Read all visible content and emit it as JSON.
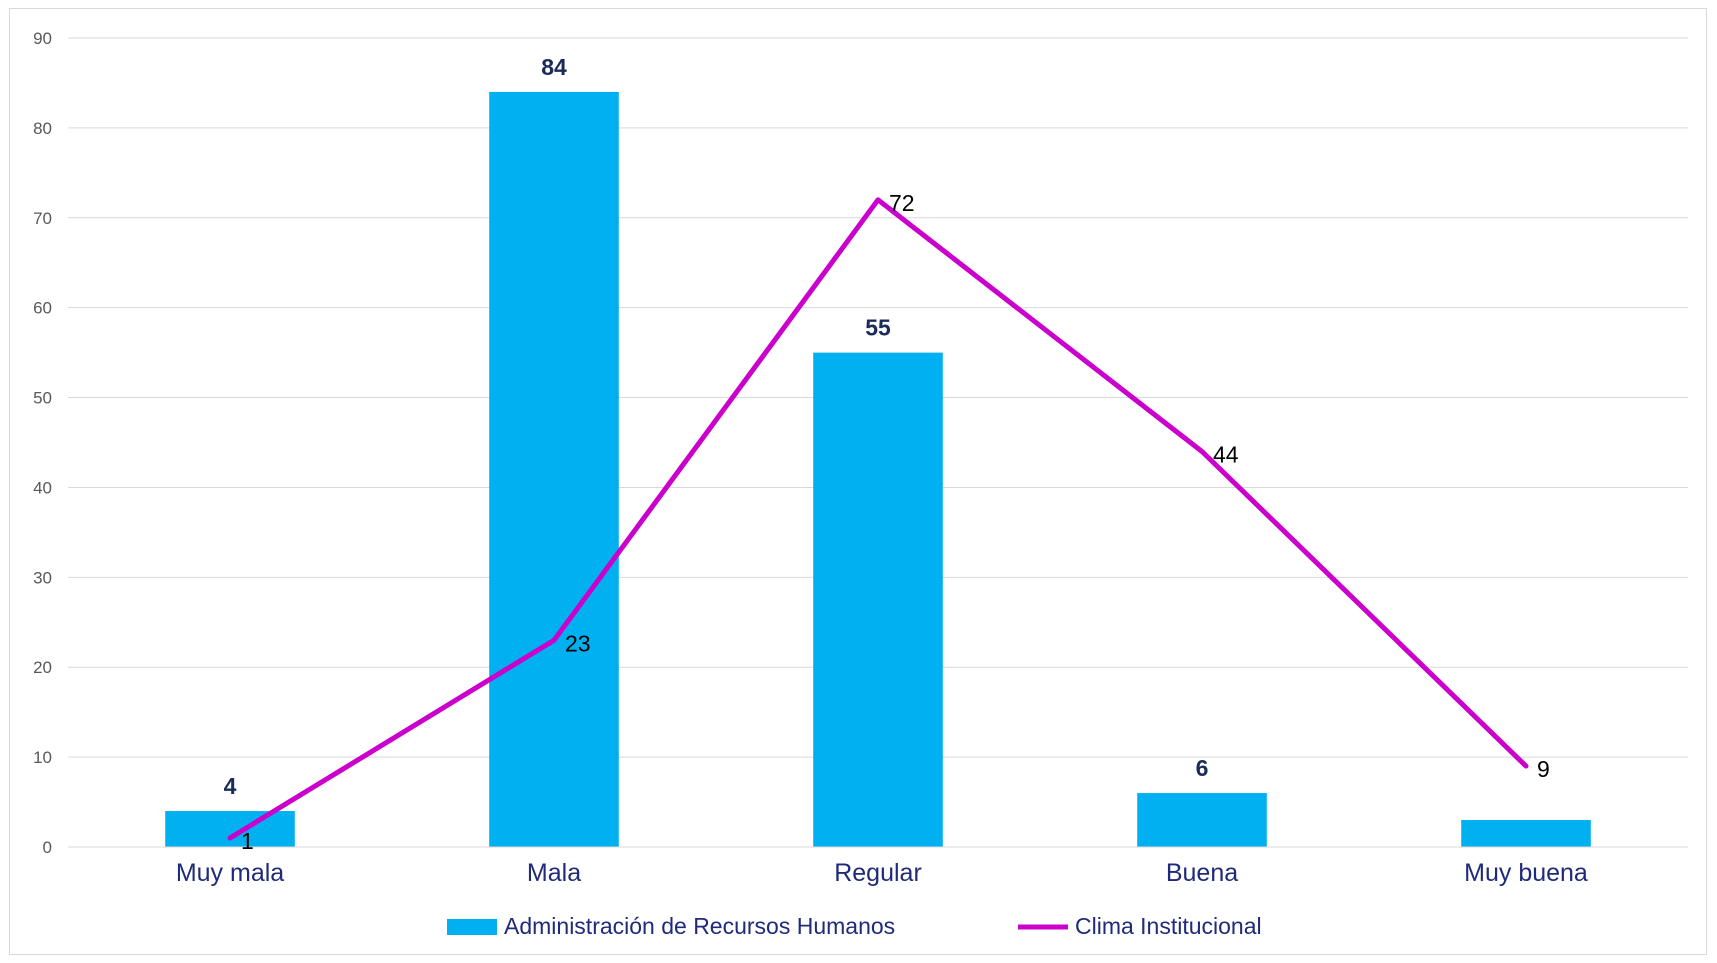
{
  "chart_data": {
    "type": "bar",
    "categories": [
      "Muy mala",
      "Mala",
      "Regular",
      "Buena",
      "Muy buena"
    ],
    "series": [
      {
        "name": "Administración de Recursos Humanos",
        "kind": "bar",
        "color": "#00B0F0",
        "values": [
          4,
          84,
          55,
          6,
          3
        ],
        "labels": [
          "4",
          "84",
          "55",
          "6",
          ""
        ]
      },
      {
        "name": "Clima Institucional",
        "kind": "line",
        "color": "#CC00CC",
        "values": [
          1,
          23,
          72,
          44,
          9
        ],
        "labels": [
          "1",
          "23",
          "72",
          "44",
          "9"
        ]
      }
    ],
    "ylim": [
      0,
      90
    ],
    "yticks": [
      "0",
      "10",
      "20",
      "30",
      "40",
      "50",
      "60",
      "70",
      "80",
      "90"
    ],
    "grid": true,
    "legend_position": "bottom"
  }
}
